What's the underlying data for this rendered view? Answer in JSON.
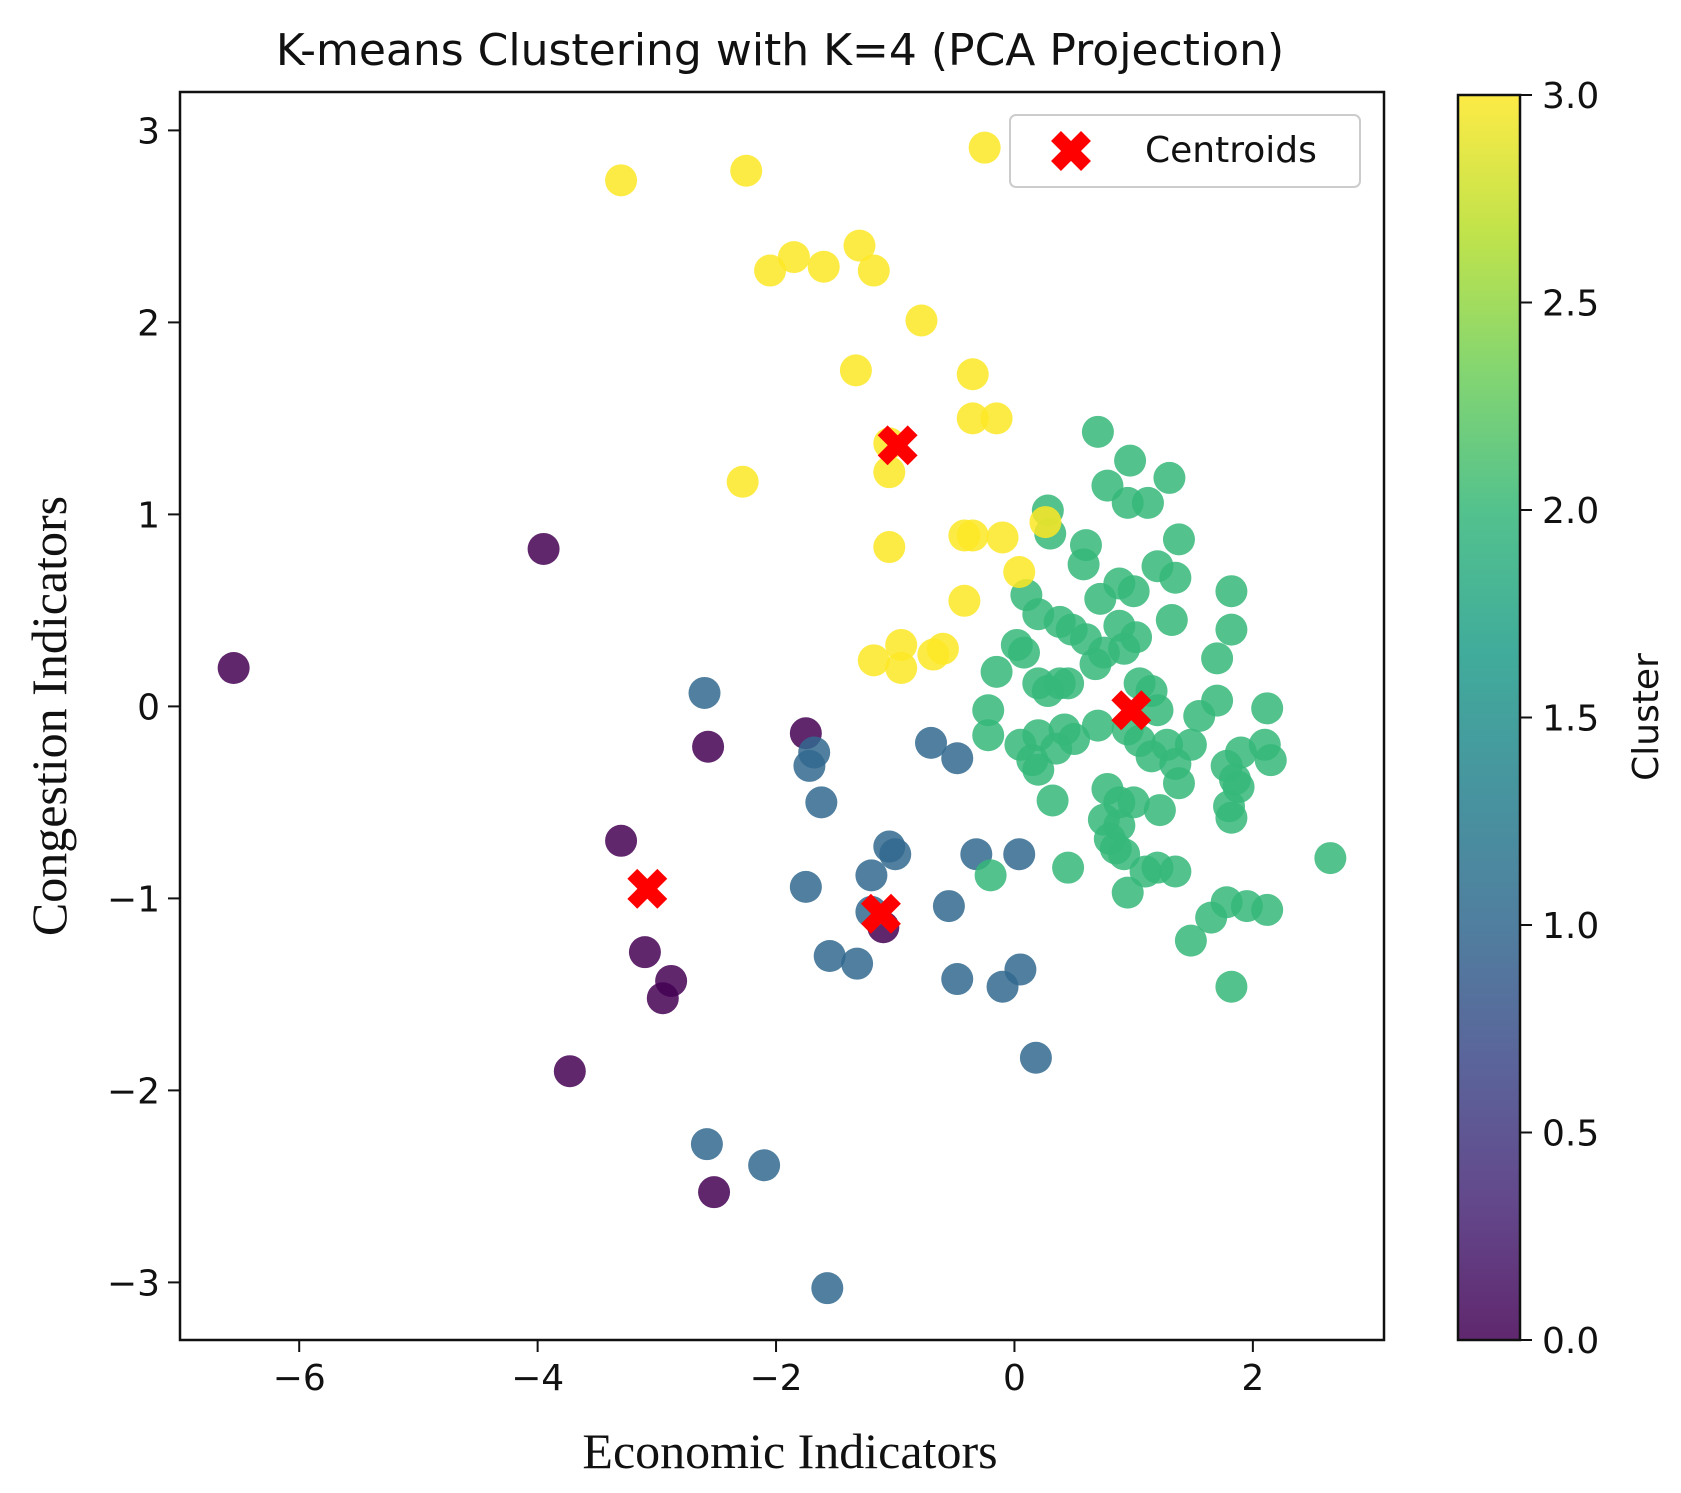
{
  "chart_data": {
    "type": "scatter",
    "title": "K-means Clustering with K=4 (PCA Projection)",
    "xlabel": "Economic Indicators",
    "ylabel": "Congestion Indicators",
    "xlim": [
      -7,
      3.1
    ],
    "ylim": [
      -3.3,
      3.2
    ],
    "xticks": [
      -6,
      -4,
      -2,
      0,
      2
    ],
    "yticks": [
      -3,
      -2,
      -1,
      0,
      1,
      2,
      3
    ],
    "xtick_labels": [
      "−6",
      "−4",
      "−2",
      "0",
      "2"
    ],
    "ytick_labels": [
      "−3",
      "−2",
      "−1",
      "0",
      "1",
      "2",
      "3"
    ],
    "grid": false,
    "colorbar": {
      "label": "Cluster",
      "range": [
        0.0,
        3.0
      ],
      "ticks": [
        0.0,
        0.5,
        1.0,
        1.5,
        2.0,
        2.5,
        3.0
      ],
      "tick_labels": [
        "0.0",
        "0.5",
        "1.0",
        "1.5",
        "2.0",
        "2.5",
        "3.0"
      ],
      "colormap": "viridis",
      "stops": [
        "#440154",
        "#482878",
        "#3e4989",
        "#31688e",
        "#26828e",
        "#1f9e89",
        "#35b779",
        "#6ece58",
        "#b5de2b",
        "#fde725"
      ]
    },
    "cluster_colors": {
      "0": "#440154",
      "1": "#31688e",
      "2": "#35b779",
      "3": "#fde725"
    },
    "legend": {
      "position": "top-right",
      "entries": [
        "Centroids"
      ]
    },
    "centroid_color": "#ff0000",
    "series": [
      {
        "name": "Cluster 0",
        "cluster": 0,
        "points": [
          [
            -6.55,
            0.2
          ],
          [
            -3.95,
            0.82
          ],
          [
            -2.57,
            -0.21
          ],
          [
            -1.75,
            -0.14
          ],
          [
            -3.3,
            -0.7
          ],
          [
            -3.1,
            -1.28
          ],
          [
            -2.88,
            -1.43
          ],
          [
            -2.95,
            -1.52
          ],
          [
            -3.73,
            -1.9
          ],
          [
            -2.52,
            -2.53
          ],
          [
            -1.1,
            -1.15
          ]
        ]
      },
      {
        "name": "Cluster 1",
        "cluster": 1,
        "points": [
          [
            -2.6,
            0.07
          ],
          [
            -1.68,
            -0.24
          ],
          [
            -1.72,
            -0.31
          ],
          [
            -1.62,
            -0.5
          ],
          [
            -0.7,
            -0.19
          ],
          [
            -0.48,
            -0.27
          ],
          [
            -1.05,
            -0.73
          ],
          [
            -1.0,
            -0.77
          ],
          [
            -1.2,
            -0.88
          ],
          [
            -0.32,
            -0.77
          ],
          [
            0.04,
            -0.77
          ],
          [
            -1.75,
            -0.94
          ],
          [
            -1.2,
            -1.07
          ],
          [
            -0.55,
            -1.04
          ],
          [
            -1.55,
            -1.3
          ],
          [
            -1.32,
            -1.34
          ],
          [
            0.05,
            -1.37
          ],
          [
            -0.48,
            -1.42
          ],
          [
            -0.1,
            -1.46
          ],
          [
            0.18,
            -1.83
          ],
          [
            -2.58,
            -2.28
          ],
          [
            -2.1,
            -2.39
          ],
          [
            -1.57,
            -3.03
          ]
        ]
      },
      {
        "name": "Cluster 2",
        "cluster": 2,
        "points": [
          [
            0.7,
            1.43
          ],
          [
            0.97,
            1.28
          ],
          [
            1.3,
            1.19
          ],
          [
            0.78,
            1.15
          ],
          [
            0.95,
            1.06
          ],
          [
            1.12,
            1.06
          ],
          [
            0.28,
            1.02
          ],
          [
            0.3,
            0.9
          ],
          [
            1.38,
            0.87
          ],
          [
            0.6,
            0.84
          ],
          [
            0.58,
            0.74
          ],
          [
            1.2,
            0.73
          ],
          [
            1.35,
            0.67
          ],
          [
            0.88,
            0.64
          ],
          [
            0.72,
            0.56
          ],
          [
            1.0,
            0.6
          ],
          [
            0.1,
            0.58
          ],
          [
            1.82,
            0.6
          ],
          [
            0.2,
            0.48
          ],
          [
            0.38,
            0.44
          ],
          [
            0.48,
            0.4
          ],
          [
            1.32,
            0.45
          ],
          [
            0.6,
            0.35
          ],
          [
            0.88,
            0.42
          ],
          [
            1.02,
            0.36
          ],
          [
            1.82,
            0.4
          ],
          [
            0.75,
            0.28
          ],
          [
            0.92,
            0.3
          ],
          [
            0.02,
            0.32
          ],
          [
            0.08,
            0.28
          ],
          [
            0.68,
            0.22
          ],
          [
            1.7,
            0.25
          ],
          [
            -0.15,
            0.18
          ],
          [
            0.2,
            0.12
          ],
          [
            0.38,
            0.12
          ],
          [
            0.45,
            0.12
          ],
          [
            0.28,
            0.08
          ],
          [
            1.05,
            0.12
          ],
          [
            1.15,
            0.08
          ],
          [
            1.7,
            0.03
          ],
          [
            1.55,
            -0.05
          ],
          [
            -0.22,
            -0.02
          ],
          [
            1.2,
            -0.02
          ],
          [
            2.12,
            -0.01
          ],
          [
            0.7,
            -0.1
          ],
          [
            0.95,
            -0.12
          ],
          [
            1.05,
            -0.18
          ],
          [
            0.42,
            -0.12
          ],
          [
            0.5,
            -0.17
          ],
          [
            -0.22,
            -0.15
          ],
          [
            0.2,
            -0.15
          ],
          [
            0.05,
            -0.2
          ],
          [
            0.35,
            -0.22
          ],
          [
            1.28,
            -0.2
          ],
          [
            1.48,
            -0.2
          ],
          [
            1.9,
            -0.24
          ],
          [
            2.1,
            -0.2
          ],
          [
            2.15,
            -0.28
          ],
          [
            0.15,
            -0.28
          ],
          [
            0.2,
            -0.33
          ],
          [
            1.15,
            -0.26
          ],
          [
            1.35,
            -0.3
          ],
          [
            1.78,
            -0.31
          ],
          [
            1.85,
            -0.38
          ],
          [
            1.88,
            -0.42
          ],
          [
            1.38,
            -0.4
          ],
          [
            0.78,
            -0.43
          ],
          [
            0.88,
            -0.5
          ],
          [
            1.0,
            -0.5
          ],
          [
            0.32,
            -0.49
          ],
          [
            1.22,
            -0.54
          ],
          [
            1.8,
            -0.52
          ],
          [
            1.82,
            -0.58
          ],
          [
            0.75,
            -0.59
          ],
          [
            0.88,
            -0.62
          ],
          [
            0.8,
            -0.69
          ],
          [
            0.85,
            -0.74
          ],
          [
            0.92,
            -0.77
          ],
          [
            1.2,
            -0.84
          ],
          [
            1.1,
            -0.86
          ],
          [
            1.35,
            -0.86
          ],
          [
            0.45,
            -0.84
          ],
          [
            -0.2,
            -0.88
          ],
          [
            0.95,
            -0.97
          ],
          [
            1.78,
            -1.02
          ],
          [
            1.95,
            -1.04
          ],
          [
            2.12,
            -1.06
          ],
          [
            1.65,
            -1.1
          ],
          [
            1.48,
            -1.22
          ],
          [
            1.82,
            -1.46
          ],
          [
            2.65,
            -0.79
          ]
        ]
      },
      {
        "name": "Cluster 3",
        "cluster": 3,
        "points": [
          [
            -3.3,
            2.74
          ],
          [
            -2.25,
            2.79
          ],
          [
            -0.25,
            2.91
          ],
          [
            -1.3,
            2.4
          ],
          [
            -1.85,
            2.34
          ],
          [
            -2.05,
            2.27
          ],
          [
            -1.6,
            2.29
          ],
          [
            -1.18,
            2.27
          ],
          [
            -0.78,
            2.01
          ],
          [
            -1.33,
            1.75
          ],
          [
            -0.35,
            1.73
          ],
          [
            -0.35,
            1.5
          ],
          [
            -0.15,
            1.5
          ],
          [
            -2.28,
            1.17
          ],
          [
            -1.05,
            1.22
          ],
          [
            -1.05,
            1.37
          ],
          [
            -0.42,
            0.89
          ],
          [
            -0.35,
            0.89
          ],
          [
            -0.1,
            0.88
          ],
          [
            0.26,
            0.96
          ],
          [
            -1.05,
            0.83
          ],
          [
            0.04,
            0.7
          ],
          [
            -0.42,
            0.55
          ],
          [
            -0.95,
            0.32
          ],
          [
            -0.6,
            0.3
          ],
          [
            -0.68,
            0.27
          ],
          [
            -1.18,
            0.24
          ],
          [
            -0.95,
            0.2
          ]
        ]
      }
    ],
    "centroids": [
      [
        -0.98,
        1.36
      ],
      [
        -3.08,
        -0.95
      ],
      [
        -1.12,
        -1.08
      ],
      [
        0.98,
        -0.02
      ]
    ]
  }
}
